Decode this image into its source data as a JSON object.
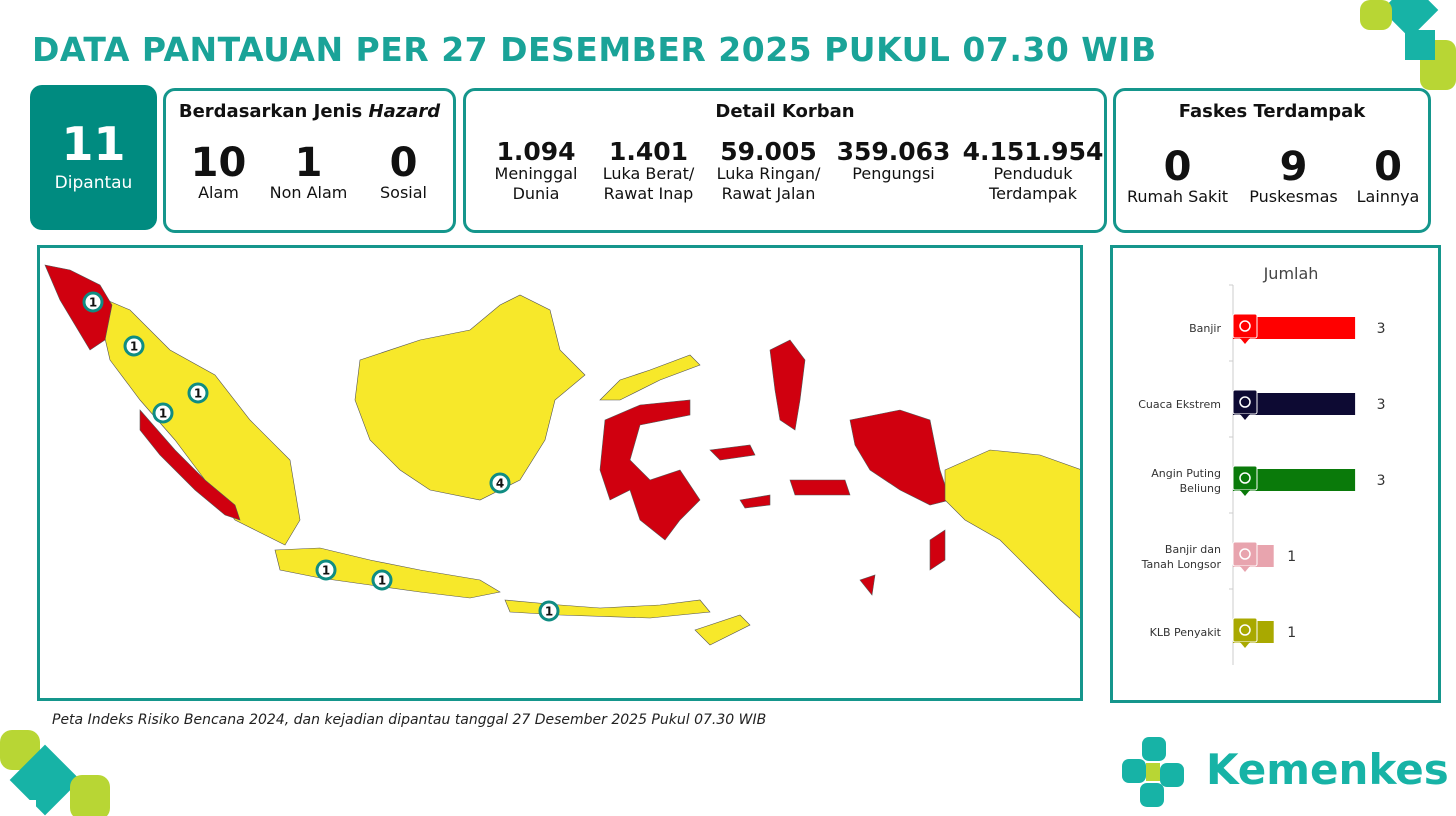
{
  "title": "DATA PANTAUAN PER 27 DESEMBER 2025 PUKUL 07.30 WIB",
  "dipantau": {
    "value": "11",
    "label": "Dipantau"
  },
  "hazard": {
    "title": "Berdasarkan Jenis ",
    "title_italic": "Hazard",
    "items": [
      {
        "value": "10",
        "label": "Alam"
      },
      {
        "value": "1",
        "label": "Non Alam"
      },
      {
        "value": "0",
        "label": "Sosial"
      }
    ]
  },
  "korban": {
    "title": "Detail Korban",
    "items": [
      {
        "value": "1.094",
        "label": "Meninggal",
        "label2": "Dunia"
      },
      {
        "value": "1.401",
        "label": "Luka Berat/",
        "label2": "Rawat Inap"
      },
      {
        "value": "59.005",
        "label": "Luka Ringan/",
        "label2": "Rawat Jalan"
      },
      {
        "value": "359.063",
        "label": "Pengungsi",
        "label2": ""
      },
      {
        "value": "4.151.954",
        "label": "Penduduk",
        "label2": "Terdampak"
      }
    ]
  },
  "faskes": {
    "title": "Faskes Terdampak",
    "items": [
      {
        "value": "0",
        "label": "Rumah Sakit"
      },
      {
        "value": "9",
        "label": "Puskesmas"
      },
      {
        "value": "0",
        "label": "Lainnya"
      }
    ]
  },
  "map": {
    "markers": [
      "1",
      "1",
      "1",
      "1",
      "4",
      "1",
      "1",
      "1"
    ],
    "colors": {
      "low": "#f7e82a",
      "high": "#d0000f"
    }
  },
  "caption": "Peta Indeks Risiko Bencana 2024, dan kejadian dipantau tanggal 27 Desember 2025 Pukul 07.30 WIB",
  "chart_data": {
    "type": "bar",
    "orientation": "horizontal",
    "title": "Jumlah",
    "categories": [
      "Banjir",
      "Cuaca Ekstrem",
      "Angin Puting Beliung",
      "Banjir dan Tanah Longsor",
      "KLB Penyakit"
    ],
    "values": [
      3,
      3,
      3,
      1,
      1
    ],
    "colors": [
      "#ff0000",
      "#0d0a33",
      "#0a7a0a",
      "#e8a4ae",
      "#a9a900"
    ],
    "icons": [
      "flood-icon",
      "extreme-weather-icon",
      "tornado-icon",
      "landslide-icon",
      "disease-icon"
    ]
  },
  "logo": {
    "text": "Kemenkes"
  }
}
